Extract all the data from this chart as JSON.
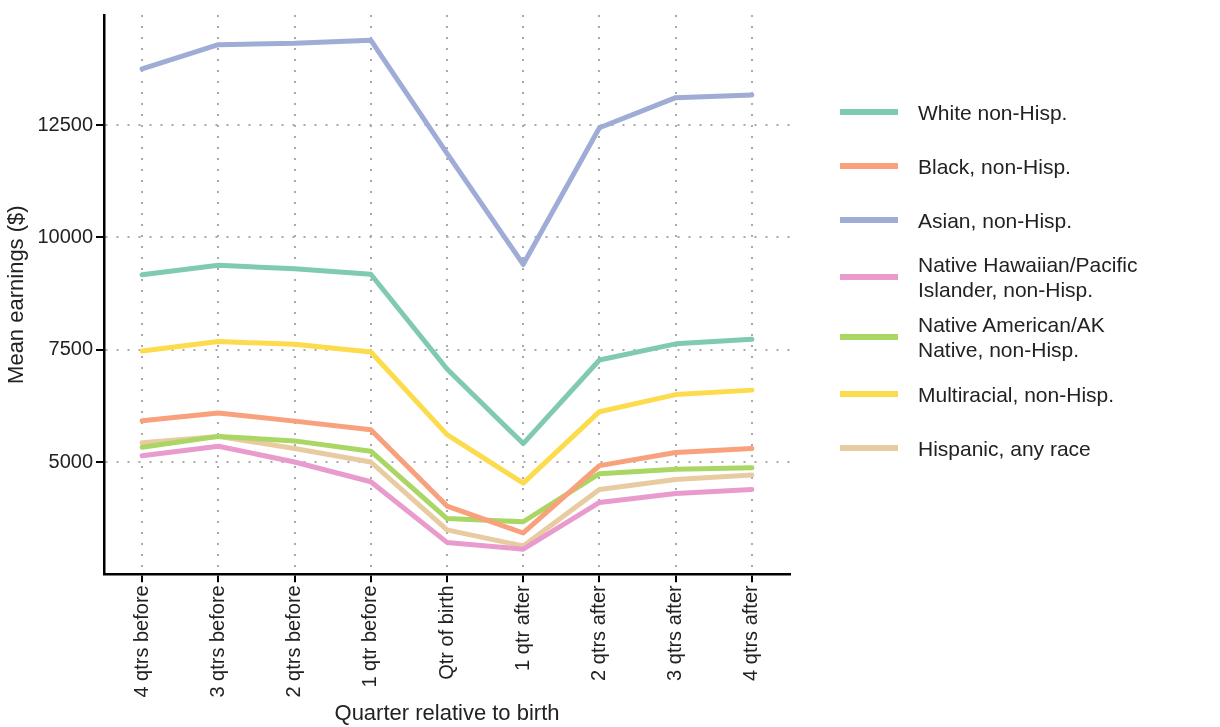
{
  "chart_data": {
    "type": "line",
    "xlabel": "Quarter relative to birth",
    "ylabel": "Mean earnings ($)",
    "categories": [
      "4 qtrs before",
      "3 qtrs before",
      "2 qtrs before",
      "1 qtr before",
      "Qtr of birth",
      "1 qtr after",
      "2 qtrs after",
      "3 qtrs after",
      "4 qtrs after"
    ],
    "ylim": [
      2500,
      14950
    ],
    "yticks": [
      5000,
      7500,
      10000,
      12500
    ],
    "grid": true,
    "legend": "right",
    "marker": "none",
    "line_style": "solid",
    "series": [
      {
        "name": "White non-Hisp.",
        "color": "#80cbb0",
        "values": [
          9170,
          9380,
          9300,
          9180,
          7070,
          5410,
          7270,
          7630,
          7730
        ]
      },
      {
        "name": "Black, non-Hisp.",
        "color": "#f9a07c",
        "values": [
          5920,
          6090,
          5910,
          5720,
          4020,
          3420,
          4920,
          5210,
          5300
        ]
      },
      {
        "name": "Asian, non-Hisp.",
        "color": "#9fadd6",
        "values": [
          13750,
          14290,
          14320,
          14390,
          11870,
          9400,
          12440,
          13110,
          13170
        ]
      },
      {
        "name": "Native Hawaiian/Pacific Islander, non-Hisp.",
        "color": "#e89bcc",
        "values": [
          5140,
          5350,
          5000,
          4560,
          3210,
          3060,
          4100,
          4300,
          4390
        ]
      },
      {
        "name": "Native American/AK Native, non-Hisp.",
        "color": "#aad663",
        "values": [
          5330,
          5570,
          5470,
          5240,
          3740,
          3670,
          4740,
          4840,
          4870
        ]
      },
      {
        "name": "Multiracial, non-Hisp.",
        "color": "#fcdc4d",
        "values": [
          7470,
          7680,
          7620,
          7450,
          5610,
          4530,
          6120,
          6500,
          6600
        ]
      },
      {
        "name": "Hispanic, any race",
        "color": "#e8cba0",
        "values": [
          5430,
          5570,
          5300,
          5000,
          3490,
          3130,
          4390,
          4610,
          4710
        ]
      }
    ]
  }
}
